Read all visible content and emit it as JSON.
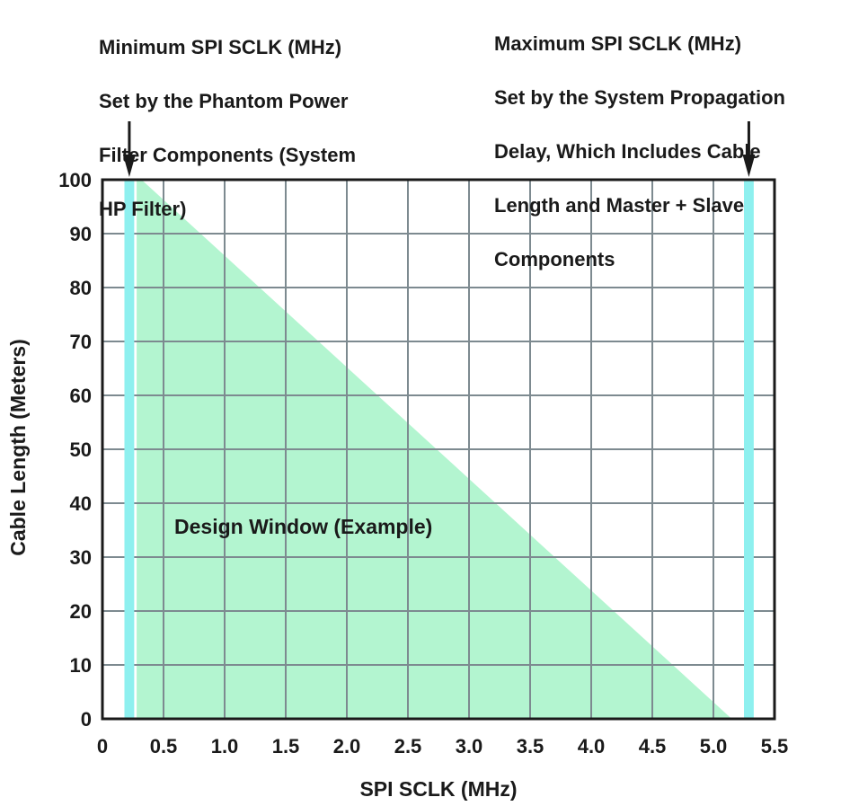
{
  "chart_data": {
    "type": "area",
    "title": "",
    "xlabel": "SPI SCLK (MHz)",
    "ylabel": "Cable Length  (Meters)",
    "xlim": [
      0,
      5.5
    ],
    "ylim": [
      0,
      100
    ],
    "x_ticks": [
      "0",
      "0.5",
      "1.0",
      "1.5",
      "2.0",
      "2.5",
      "3.0",
      "3.5",
      "4.0",
      "4.5",
      "5.0",
      "5.5"
    ],
    "y_ticks": [
      "0",
      "10",
      "20",
      "30",
      "40",
      "50",
      "60",
      "70",
      "80",
      "90",
      "100"
    ],
    "grid": true,
    "design_window": {
      "label": "Design Window (Example)",
      "color": "#b3f5d0",
      "polygon": [
        [
          0.28,
          0
        ],
        [
          0.28,
          100
        ],
        [
          0.32,
          100
        ],
        [
          5.15,
          0
        ]
      ]
    },
    "limit_bands": [
      {
        "x_min": 0.18,
        "x_max": 0.26,
        "color": "#8ef0ef"
      },
      {
        "x_min": 5.25,
        "x_max": 5.33,
        "color": "#8ef0ef"
      }
    ],
    "annotations": [
      {
        "lines": [
          "Minimum SPI SCLK (MHz)",
          "Set by the Phantom Power",
          "Filter Components (System",
          "HP Filter)"
        ],
        "arrow_x": 0.22
      },
      {
        "lines": [
          "Maximum SPI SCLK (MHz)",
          "Set by the System Propagation",
          "Delay, Which Includes Cable",
          "Length and Master + Slave",
          "Components"
        ],
        "arrow_x": 5.29
      }
    ]
  }
}
